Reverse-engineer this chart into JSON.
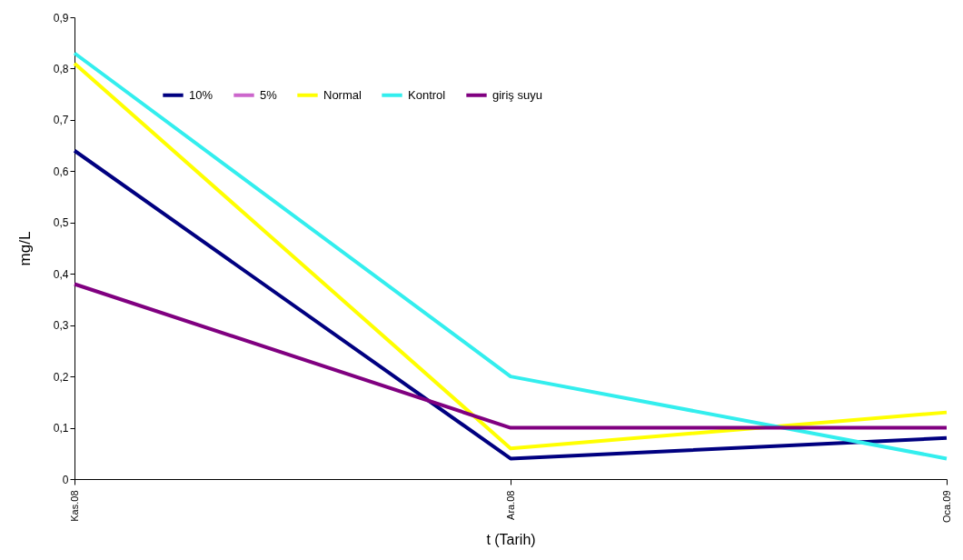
{
  "chart_data": {
    "type": "line",
    "xlabel": "t (Tarih)",
    "ylabel": "mg/L",
    "categories": [
      "Kas.08",
      "Ara.08",
      "Oca.09"
    ],
    "series": [
      {
        "name": "10%",
        "color": "#000080",
        "values": [
          0.64,
          0.04,
          0.08
        ]
      },
      {
        "name": "5%",
        "color": "#cc66cc",
        "values": [
          null,
          null,
          null
        ]
      },
      {
        "name": "Normal",
        "color": "#ffff00",
        "values": [
          0.81,
          0.06,
          0.13
        ]
      },
      {
        "name": "Kontrol",
        "color": "#33eeee",
        "values": [
          0.83,
          0.2,
          0.04
        ]
      },
      {
        "name": "giriş suyu",
        "color": "#800080",
        "values": [
          0.38,
          0.1,
          0.1
        ]
      }
    ],
    "ylim": [
      0,
      0.9
    ],
    "yticks": [
      0,
      {
        "value": 0.1,
        "label": "0,1"
      },
      {
        "value": 0.2,
        "label": "0,2"
      },
      {
        "value": 0.3,
        "label": "0,3"
      },
      {
        "value": 0.4,
        "label": "0,4"
      },
      {
        "value": 0.5,
        "label": "0,5"
      },
      {
        "value": 0.6,
        "label": "0,6"
      },
      {
        "value": 0.7,
        "label": "0,7"
      },
      {
        "value": 0.8,
        "label": "0,8"
      },
      {
        "value": 0.9,
        "label": "0,9"
      }
    ],
    "grid": false,
    "legend": "top left",
    "marker": "none",
    "line_style": "solid"
  }
}
